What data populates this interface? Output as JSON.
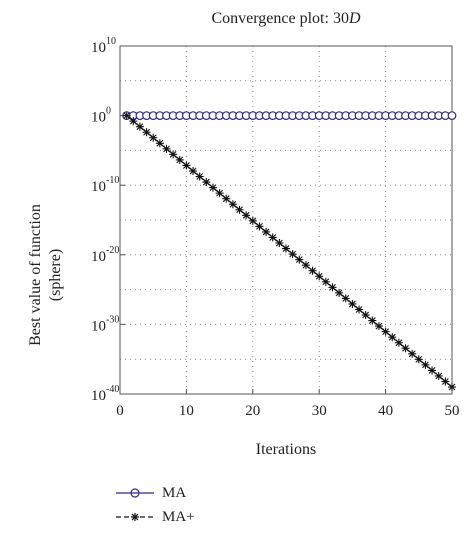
{
  "chart_data": {
    "type": "line",
    "title": "Convergence plot: 30",
    "title_italic": "D",
    "xlabel": "Iterations",
    "ylabel": [
      "Best value of function",
      "(sphere)"
    ],
    "xlim": [
      0,
      50
    ],
    "ylim_log10": [
      -40,
      10
    ],
    "y_scale": "log",
    "x_ticks": [
      0,
      10,
      20,
      30,
      40,
      50
    ],
    "y_ticks": [
      {
        "base": "10",
        "exp": "10"
      },
      {
        "base": "10",
        "exp": "0"
      },
      {
        "base": "10",
        "exp": "-10"
      },
      {
        "base": "10",
        "exp": "-20"
      },
      {
        "base": "10",
        "exp": "-30"
      },
      {
        "base": "10",
        "exp": "-40"
      }
    ],
    "grid": true,
    "legend_position": "bottom-left",
    "series": [
      {
        "name": "MA",
        "marker": "circle",
        "color": "#2b2b8c",
        "x": [
          1,
          50
        ],
        "y": [
          "1e0",
          "1e0"
        ],
        "per_iteration": "constant"
      },
      {
        "name": "MA+",
        "marker": "asterisk",
        "color": "#111111",
        "x": [
          1,
          50
        ],
        "y": [
          "1e0",
          "1e-39"
        ],
        "per_iteration": "log-linear"
      }
    ]
  }
}
